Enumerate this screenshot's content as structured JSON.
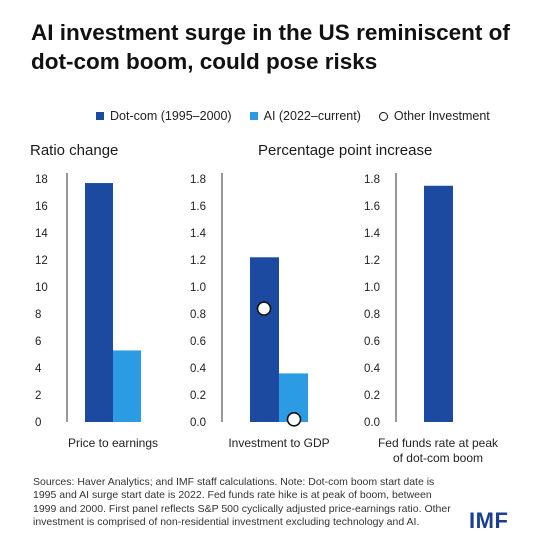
{
  "title": "AI investment surge in the US reminiscent of dot-com boom, could pose risks",
  "legend": [
    {
      "label": "Dot-com (1995–2000)",
      "type": "square",
      "color": "#1b4aa0"
    },
    {
      "label": "AI (2022–current)",
      "type": "square",
      "color": "#2b9be3"
    },
    {
      "label": "Other Investment",
      "type": "circle",
      "color": "#ffffff"
    }
  ],
  "subtitles": {
    "left": "Ratio change",
    "right": "Percentage point increase"
  },
  "colors": {
    "dotcom": "#1b4aa0",
    "ai": "#2b9be3",
    "axis": "#333333",
    "tick": "#222222"
  },
  "chart_data": [
    {
      "type": "bar",
      "categories": [
        "Price to earnings"
      ],
      "series": [
        {
          "name": "Dot-com (1995–2000)",
          "values": [
            17.7
          ]
        },
        {
          "name": "AI (2022–current)",
          "values": [
            5.3
          ]
        }
      ],
      "ylim": [
        0,
        18
      ],
      "yticks": [
        "0",
        "2",
        "4",
        "6",
        "8",
        "10",
        "12",
        "14",
        "16",
        "18"
      ],
      "xlabel": [
        "Price to earnings"
      ]
    },
    {
      "type": "bar",
      "categories": [
        "Investment to GDP"
      ],
      "series": [
        {
          "name": "Dot-com (1995–2000)",
          "values": [
            1.22
          ]
        },
        {
          "name": "AI (2022–current)",
          "values": [
            0.36
          ]
        }
      ],
      "other_investment": [
        0.84,
        0.02
      ],
      "ylim": [
        0,
        1.8
      ],
      "yticks": [
        "0.0",
        "0.2",
        "0.4",
        "0.6",
        "0.8",
        "1.0",
        "1.2",
        "1.4",
        "1.6",
        "1.8"
      ],
      "xlabel": [
        "Investment to GDP"
      ]
    },
    {
      "type": "bar",
      "categories": [
        "Fed funds rate at peak of dot-com boom"
      ],
      "series": [
        {
          "name": "Dot-com (1995–2000)",
          "values": [
            1.75
          ]
        }
      ],
      "ylim": [
        0,
        1.8
      ],
      "yticks": [
        "0.0",
        "0.2",
        "0.4",
        "0.6",
        "0.8",
        "1.0",
        "1.2",
        "1.4",
        "1.6",
        "1.8"
      ],
      "xlabel": [
        "Fed funds rate at peak",
        "of dot-com boom"
      ]
    }
  ],
  "source": "Sources: Haver Analytics; and IMF staff calculations. Note: Dot-com boom start date is 1995 and AI surge start date is 2022. Fed funds rate hike is at peak of boom, between 1999 and 2000. First panel reflects S&P 500 cyclically adjusted price-earnings ratio. Other investment is comprised of non-residential investment excluding technology and AI.",
  "logo": "IMF"
}
